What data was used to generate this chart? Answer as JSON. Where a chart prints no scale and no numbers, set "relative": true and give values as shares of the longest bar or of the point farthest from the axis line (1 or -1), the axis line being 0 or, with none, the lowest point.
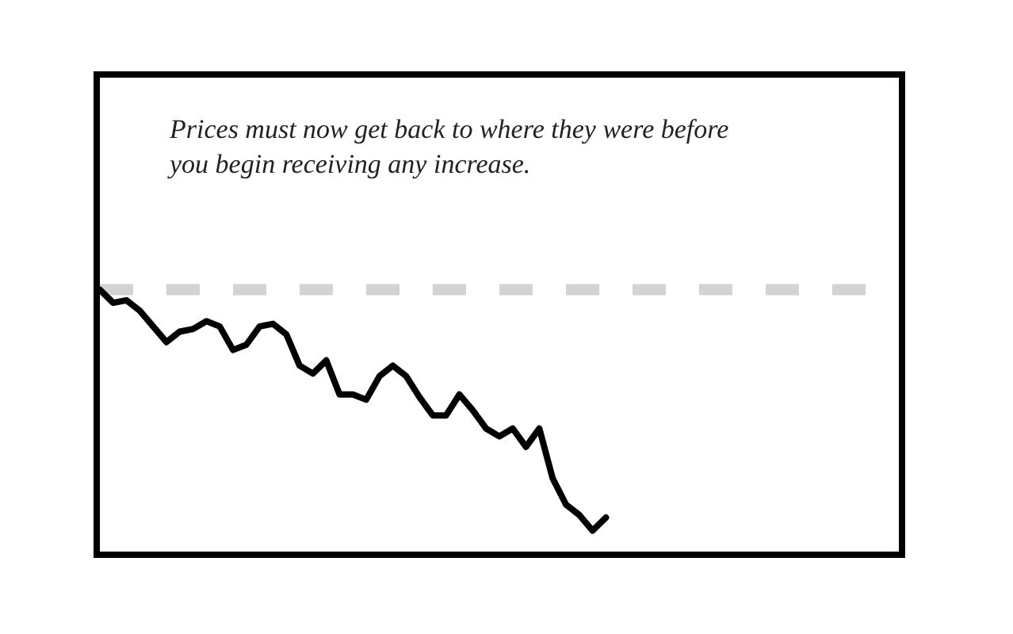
{
  "chart_data": {
    "type": "line",
    "relative": true,
    "categories": [
      null,
      null,
      null,
      null,
      null,
      null,
      null,
      null,
      null,
      null,
      null,
      null,
      null,
      null,
      null,
      null,
      null,
      null,
      null,
      null,
      null,
      null,
      null,
      null,
      null,
      null,
      null,
      null,
      null,
      null,
      null,
      null,
      null,
      null,
      null,
      null,
      null,
      null,
      null,
      null,
      null,
      null,
      null,
      null,
      null,
      null,
      null,
      null,
      null,
      null,
      null,
      null,
      null,
      null,
      null,
      null,
      null,
      null,
      null,
      null,
      null
    ],
    "series": [
      {
        "color": "#000000",
        "values": [
          1.0,
          0.95,
          0.96,
          0.92,
          0.86,
          0.8,
          0.84,
          0.85,
          0.88,
          0.86,
          0.77,
          0.79,
          0.86,
          0.87,
          0.83,
          0.71,
          0.68,
          0.73,
          0.6,
          0.6,
          0.58,
          0.67,
          0.71,
          0.67,
          0.59,
          0.52,
          0.52,
          0.6,
          0.54,
          0.47,
          0.44,
          0.47,
          0.4,
          0.47,
          0.28,
          0.18,
          0.14,
          0.08,
          0.13,
          null,
          null,
          null,
          null,
          null,
          null,
          null,
          null,
          null,
          null,
          null,
          null,
          null,
          null,
          null,
          null,
          null,
          null,
          null,
          null,
          null,
          null
        ]
      }
    ],
    "ref_lines": [
      {
        "axis": "y",
        "value": 1.0,
        "color": "#d3d3d3",
        "line_style": "dashed"
      }
    ],
    "annotations": [
      "Prices must now get back to where they were before\nyou begin receiving any increase."
    ],
    "line_style": "solid",
    "marker": "none",
    "grid": false
  }
}
